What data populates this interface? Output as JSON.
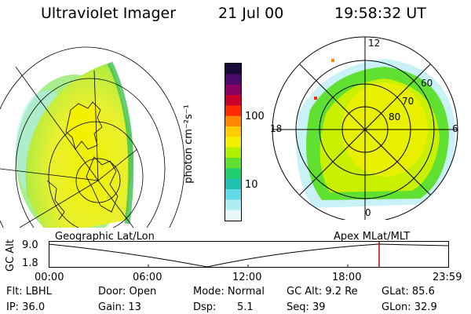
{
  "header": {
    "title": "Ultraviolet Imager",
    "date": "21 Jul 00",
    "time": "19:58:32 UT"
  },
  "colorbar": {
    "unit_label": "photon cm⁻²s⁻¹",
    "ticks": [
      "100",
      "10"
    ],
    "colors": [
      "#1a0a3a",
      "#4b0a6a",
      "#8a0060",
      "#c8002a",
      "#ff2a00",
      "#ff8800",
      "#ffcc00",
      "#f0f000",
      "#b0f000",
      "#60e030",
      "#20d070",
      "#20c0b0",
      "#60d8e8",
      "#b0ecf4",
      "#eaf8fc"
    ]
  },
  "left_map": {
    "caption": "Geographic Lat/Lon"
  },
  "right_map": {
    "caption": "Apex MLat/MLT",
    "mlt_labels": [
      "12",
      "18",
      "6",
      "0"
    ],
    "lat_labels": [
      "60",
      "70",
      "80"
    ]
  },
  "altitude_plot": {
    "ylabel": "GC Alt",
    "y_ticks": [
      "9.0",
      "1.8"
    ],
    "x_ticks": [
      "00:00",
      "06:00",
      "12:00",
      "18:00",
      "23:59"
    ],
    "marker_color": "#cc0000"
  },
  "info": {
    "flt": "Flt: LBHL",
    "door": "Door: Open",
    "mode": "Mode: Normal",
    "gc_alt": "GC Alt: 9.2 Re",
    "glat": "GLat: 85.6",
    "ip": "IP: 36.0",
    "gain": "Gain: 13",
    "dsp_label": "Dsp:",
    "dsp_value": "5.1",
    "seq": "Seq: 39",
    "glon": "GLon: 32.9"
  }
}
